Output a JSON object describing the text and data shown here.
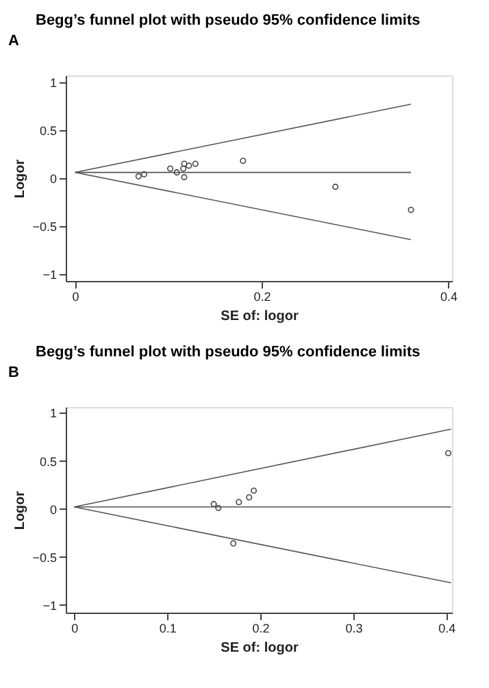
{
  "chart_data": [
    {
      "type": "scatter",
      "title": "Begg’s funnel plot with pseudo 95% confidence limits",
      "xlabel": "SE of: logor",
      "ylabel": "Logor",
      "annotations": [
        "A"
      ],
      "xlim": [
        -0.01,
        0.404
      ],
      "ylim": [
        -1.07,
        1.07
      ],
      "xticks": [
        0,
        0.2,
        0.4
      ],
      "yticks": [
        -1,
        -0.5,
        0,
        0.5,
        1
      ],
      "grid": false,
      "series": [
        {
          "color": "#444444",
          "marker": "circle",
          "x": [
            0.068,
            0.074,
            0.102,
            0.109,
            0.116,
            0.117,
            0.117,
            0.122,
            0.129,
            0.18,
            0.279,
            0.36
          ],
          "values": [
            0.02,
            0.04,
            0.1,
            0.06,
            0.1,
            0.15,
            0.01,
            0.13,
            0.15,
            0.18,
            -0.09,
            -0.33
          ]
        },
        {
          "type": "line",
          "color": "#555555",
          "x": [
            0,
            0.36
          ],
          "values": [
            0.06,
            0.06
          ]
        },
        {
          "type": "line",
          "color": "#555555",
          "x": [
            0,
            0.36
          ],
          "values": [
            0.06,
            0.77
          ]
        },
        {
          "type": "line",
          "color": "#555555",
          "x": [
            0,
            0.36
          ],
          "values": [
            0.06,
            -0.64
          ]
        }
      ]
    },
    {
      "type": "scatter",
      "title": "Begg’s funnel plot with pseudo 95% confidence limits",
      "xlabel": "SE of: logor",
      "ylabel": "Logor",
      "annotations": [
        "B"
      ],
      "xlim": [
        -0.009,
        0.406
      ],
      "ylim": [
        -1.08,
        1.06
      ],
      "xticks": [
        0,
        0.1,
        0.2,
        0.3,
        0.4
      ],
      "yticks": [
        -1,
        -0.5,
        0,
        0.5,
        1
      ],
      "grid": false,
      "series": [
        {
          "color": "#444444",
          "marker": "circle",
          "x": [
            0.15,
            0.155,
            0.177,
            0.188,
            0.193,
            0.171,
            0.402
          ],
          "values": [
            0.05,
            0.01,
            0.07,
            0.12,
            0.19,
            -0.36,
            0.58
          ]
        },
        {
          "type": "line",
          "color": "#555555",
          "x": [
            0,
            0.405
          ],
          "values": [
            0.02,
            0.02
          ]
        },
        {
          "type": "line",
          "color": "#555555",
          "x": [
            0,
            0.405
          ],
          "values": [
            0.02,
            0.83
          ]
        },
        {
          "type": "line",
          "color": "#555555",
          "x": [
            0,
            0.405
          ],
          "values": [
            0.02,
            -0.77
          ]
        }
      ]
    }
  ]
}
